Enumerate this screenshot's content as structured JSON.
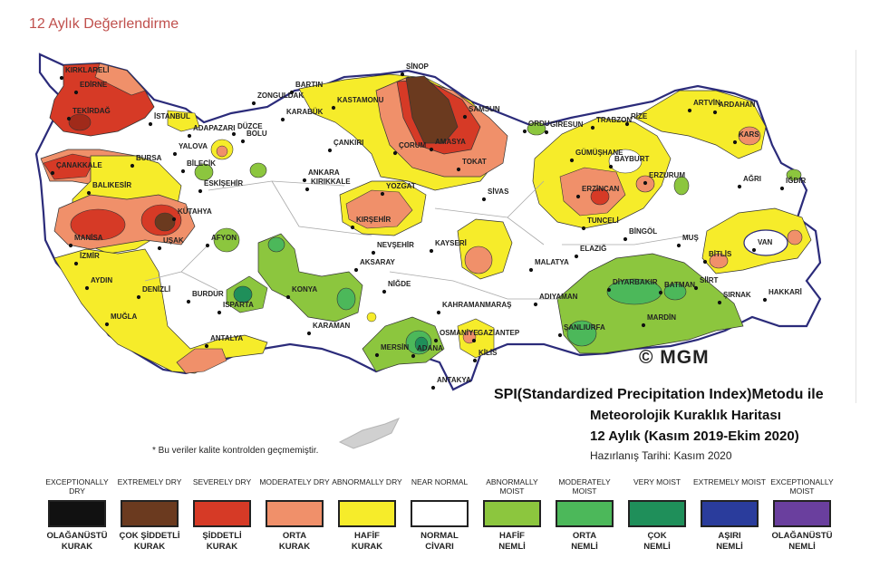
{
  "page": {
    "title": "12 Aylık Değerlendirme"
  },
  "map": {
    "title_line1": "SPI(Standardized Precipitation Index)Metodu ile",
    "title_line2": "Meteorolojik Kuraklık Haritası",
    "title_line3": "12 Aylık (Kasım 2019-Ekim 2020)",
    "prepared_date": "Hazırlanış Tarihi: Kasım 2020",
    "copyright": "© MGM",
    "footnote": "* Bu veriler kalite kontrolden geçmemiştir.",
    "cities": [
      {
        "name": "KIRKLARELİ"
      },
      {
        "name": "EDİRNE"
      },
      {
        "name": "TEKİRDAĞ"
      },
      {
        "name": "İSTANBUL"
      },
      {
        "name": "ÇANAKKALE"
      },
      {
        "name": "BALIKESİR"
      },
      {
        "name": "BURSA"
      },
      {
        "name": "YALOVA"
      },
      {
        "name": "BİLECİK"
      },
      {
        "name": "ESKİŞEHİR"
      },
      {
        "name": "ADAPAZARI"
      },
      {
        "name": "DÜZCE"
      },
      {
        "name": "BOLU"
      },
      {
        "name": "ZONGULDAK"
      },
      {
        "name": "BARTIN"
      },
      {
        "name": "KARABÜK"
      },
      {
        "name": "KASTAMONU"
      },
      {
        "name": "SİNOP"
      },
      {
        "name": "ÇANKIRI"
      },
      {
        "name": "ÇORUM"
      },
      {
        "name": "AMASYA"
      },
      {
        "name": "SAMSUN"
      },
      {
        "name": "TOKAT"
      },
      {
        "name": "ORDU"
      },
      {
        "name": "GİRESUN"
      },
      {
        "name": "TRABZON"
      },
      {
        "name": "RİZE"
      },
      {
        "name": "ARTVİN"
      },
      {
        "name": "ARDAHAN"
      },
      {
        "name": "KARS"
      },
      {
        "name": "IĞDIR"
      },
      {
        "name": "AĞRI"
      },
      {
        "name": "GÜMÜŞHANE"
      },
      {
        "name": "BAYBURT"
      },
      {
        "name": "ERZURUM"
      },
      {
        "name": "ERZİNCAN"
      },
      {
        "name": "SİVAS"
      },
      {
        "name": "ANKARA"
      },
      {
        "name": "KIRIKKALE"
      },
      {
        "name": "YOZGAT"
      },
      {
        "name": "KIRŞEHİR"
      },
      {
        "name": "NEVŞEHİR"
      },
      {
        "name": "KAYSERİ"
      },
      {
        "name": "AKSARAY"
      },
      {
        "name": "NİĞDE"
      },
      {
        "name": "KONYA"
      },
      {
        "name": "KARAMAN"
      },
      {
        "name": "KÜTAHYA"
      },
      {
        "name": "AFYON"
      },
      {
        "name": "UŞAK"
      },
      {
        "name": "MANİSA"
      },
      {
        "name": "İZMİR"
      },
      {
        "name": "AYDIN"
      },
      {
        "name": "DENİZLİ"
      },
      {
        "name": "MUĞLA"
      },
      {
        "name": "BURDUR"
      },
      {
        "name": "ISPARTA"
      },
      {
        "name": "ANTALYA"
      },
      {
        "name": "MERSİN"
      },
      {
        "name": "ADANA"
      },
      {
        "name": "OSMANİYE"
      },
      {
        "name": "GAZİANTEP"
      },
      {
        "name": "KİLİS"
      },
      {
        "name": "ANTAKYA"
      },
      {
        "name": "KAHRAMANMARAŞ"
      },
      {
        "name": "ADIYAMAN"
      },
      {
        "name": "MALATYA"
      },
      {
        "name": "ELAZIĞ"
      },
      {
        "name": "TUNCELİ"
      },
      {
        "name": "BİNGÖL"
      },
      {
        "name": "MUŞ"
      },
      {
        "name": "BİTLİS"
      },
      {
        "name": "VAN"
      },
      {
        "name": "SİİRT"
      },
      {
        "name": "BATMAN"
      },
      {
        "name": "DİYARBAKIR"
      },
      {
        "name": "MARDİN"
      },
      {
        "name": "ŞANLIURFA"
      },
      {
        "name": "ŞIRNAK"
      },
      {
        "name": "HAKKARİ"
      }
    ]
  },
  "legend": [
    {
      "en": "EXCEPTIONALLY DRY",
      "tr1": "OLAĞANÜSTÜ",
      "tr2": "KURAK",
      "color": "#111111"
    },
    {
      "en": "EXTREMELY DRY",
      "tr1": "ÇOK ŞİDDETLİ",
      "tr2": "KURAK",
      "color": "#6b3a1f"
    },
    {
      "en": "SEVERELY DRY",
      "tr1": "ŞİDDETLİ",
      "tr2": "KURAK",
      "color": "#d63a26"
    },
    {
      "en": "MODERATELY DRY",
      "tr1": "ORTA",
      "tr2": "KURAK",
      "color": "#f0906a"
    },
    {
      "en": "ABNORMALLY DRY",
      "tr1": "HAFİF",
      "tr2": "KURAK",
      "color": "#f6ec2a"
    },
    {
      "en": "NEAR NORMAL",
      "tr1": "NORMAL",
      "tr2": "CİVARI",
      "color": "#ffffff"
    },
    {
      "en": "ABNORMALLY MOIST",
      "tr1": "HAFİF",
      "tr2": "NEMLİ",
      "color": "#8cc63e"
    },
    {
      "en": "MODERATELY MOIST",
      "tr1": "ORTA",
      "tr2": "NEMLİ",
      "color": "#4cb85a"
    },
    {
      "en": "VERY MOIST",
      "tr1": "ÇOK",
      "tr2": "NEMLİ",
      "color": "#1f8f5a"
    },
    {
      "en": "EXTREMELY MOIST",
      "tr1": "AŞIRI",
      "tr2": "NEMLİ",
      "color": "#2a3c9c"
    },
    {
      "en": "EXCEPTIONALLY MOIST",
      "tr1": "OLAĞANÜSTÜ",
      "tr2": "NEMLİ",
      "color": "#6a3f9e"
    }
  ]
}
